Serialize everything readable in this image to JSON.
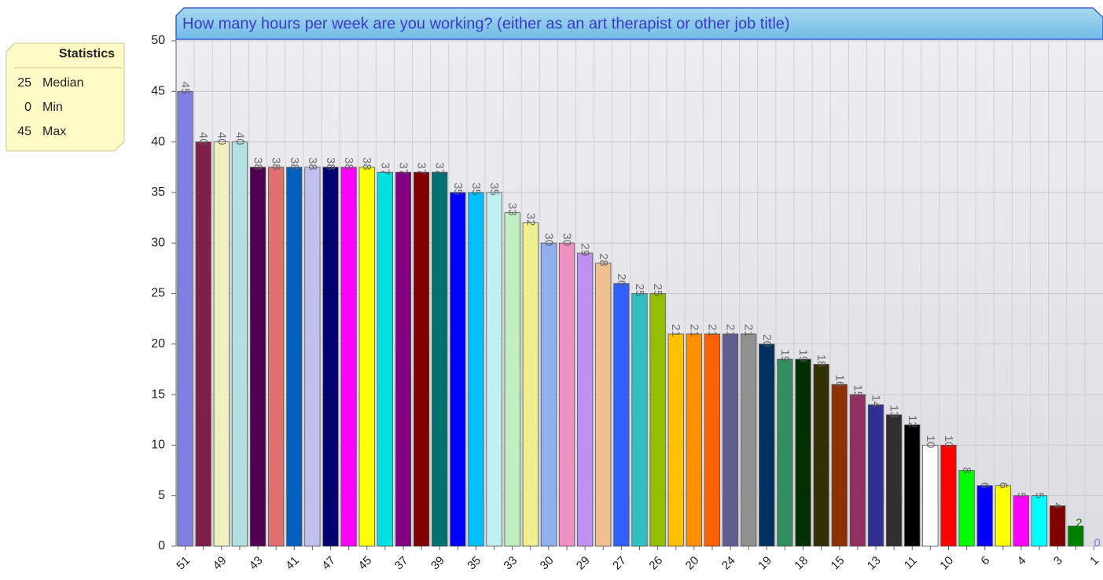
{
  "chart_data": {
    "type": "bar",
    "title": "How many hours per week are you working? (either as an art therapist or other job title)",
    "categories": [
      "51",
      null,
      "49",
      null,
      "43",
      null,
      "41",
      null,
      "47",
      null,
      "45",
      null,
      "37",
      null,
      "39",
      null,
      "35",
      null,
      "33",
      null,
      "30",
      null,
      "29",
      null,
      "27",
      null,
      "26",
      null,
      "20",
      null,
      "24",
      null,
      "19",
      null,
      "18",
      null,
      "15",
      null,
      "13",
      null,
      "11",
      null,
      "10",
      null,
      "6",
      null,
      "4",
      null,
      "3",
      null,
      "1"
    ],
    "values": [
      45,
      40,
      40,
      40,
      37.5,
      37.5,
      37.5,
      37.5,
      37.5,
      37.5,
      37.5,
      37,
      37,
      37,
      37,
      35,
      35,
      35,
      33,
      32,
      30,
      30,
      29,
      28,
      26,
      25,
      25,
      21,
      21,
      21,
      21,
      21,
      20,
      18.5,
      18.5,
      18,
      16,
      15,
      14,
      13,
      12,
      10,
      10,
      7.5,
      6,
      6,
      5,
      5,
      4,
      2,
      0
    ],
    "value_labels": [
      "45",
      "40",
      "40",
      "40",
      "38",
      "38",
      "38",
      "38",
      "38",
      "38",
      "38",
      "37",
      "37",
      "37",
      "37",
      "35",
      "35",
      "35",
      "33",
      "32",
      "30",
      "30",
      "29",
      "28",
      "26",
      "25",
      "25",
      "21",
      "21",
      "21",
      "21",
      "21",
      "20",
      "19",
      "19",
      "18",
      "16",
      "15",
      "14",
      "13",
      "12",
      "10",
      "10",
      "8",
      "6",
      "6",
      "5",
      "5",
      "4",
      "2",
      "0"
    ],
    "colors": [
      "#8080e0",
      "#80204a",
      "#f0f0c0",
      "#b0e0e0",
      "#500050",
      "#e07070",
      "#0060c0",
      "#c0c0f0",
      "#000070",
      "#ff00ff",
      "#ffff00",
      "#00e0e0",
      "#800080",
      "#800000",
      "#007070",
      "#0000ff",
      "#00c0ff",
      "#c0f0f0",
      "#c0f0c0",
      "#f0f090",
      "#90b0f0",
      "#f090c0",
      "#c090f0",
      "#f0c090",
      "#3060ff",
      "#30c0c0",
      "#90c000",
      "#ffc000",
      "#ff9000",
      "#ff6000",
      "#606090",
      "#909090",
      "#003060",
      "#309060",
      "#003000",
      "#303000",
      "#903000",
      "#903060",
      "#303090",
      "#303030",
      "#000000",
      "#ffffff",
      "#ff0000",
      "#00ff00",
      "#0000ff",
      "#ffff00",
      "#ff00ff",
      "#00ffff",
      "#800000",
      "#008000",
      "#8080e0"
    ],
    "ylim": [
      0,
      50
    ],
    "yticks": [
      0,
      5,
      10,
      15,
      20,
      25,
      30,
      35,
      40,
      45,
      50
    ],
    "grid": true
  },
  "statistics": {
    "title": "Statistics",
    "rows": [
      {
        "value": 25,
        "label": "Median"
      },
      {
        "value": 0,
        "label": "Min"
      },
      {
        "value": 45,
        "label": "Max"
      }
    ]
  }
}
